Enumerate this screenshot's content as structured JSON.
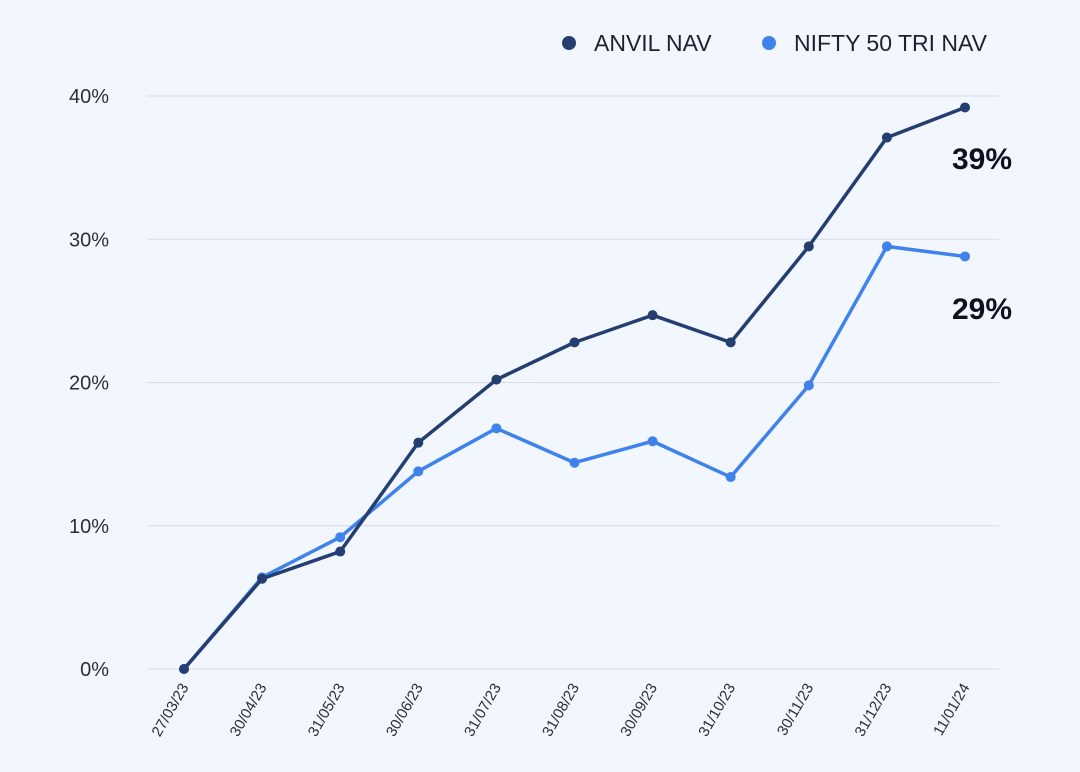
{
  "chart_data": {
    "type": "line",
    "title": "",
    "xlabel": "",
    "ylabel": "",
    "x": [
      "27/03/23",
      "30/04/23",
      "31/05/23",
      "30/06/23",
      "31/07/23",
      "31/08/23",
      "30/09/23",
      "31/10/23",
      "30/11/23",
      "31/12/23",
      "11/01/24"
    ],
    "ylim": [
      0,
      40
    ],
    "yticks": [
      0,
      10,
      20,
      30,
      40
    ],
    "ytick_labels": [
      "0%",
      "10%",
      "20%",
      "30%",
      "40%"
    ],
    "grid": "horizontal",
    "legend_position": "top-right",
    "series": [
      {
        "name": "ANVIL NAV",
        "color": "#243e72",
        "values": [
          0,
          6.3,
          8.2,
          15.8,
          20.2,
          22.8,
          24.7,
          22.8,
          29.5,
          37.1,
          39.2
        ]
      },
      {
        "name": "NIFTY 50 TRI NAV",
        "color": "#3f82ec",
        "values": [
          0,
          6.4,
          9.2,
          13.8,
          16.8,
          14.4,
          15.9,
          13.4,
          19.8,
          29.5,
          28.8
        ]
      }
    ],
    "annotations": [
      "39%",
      "29%"
    ]
  }
}
